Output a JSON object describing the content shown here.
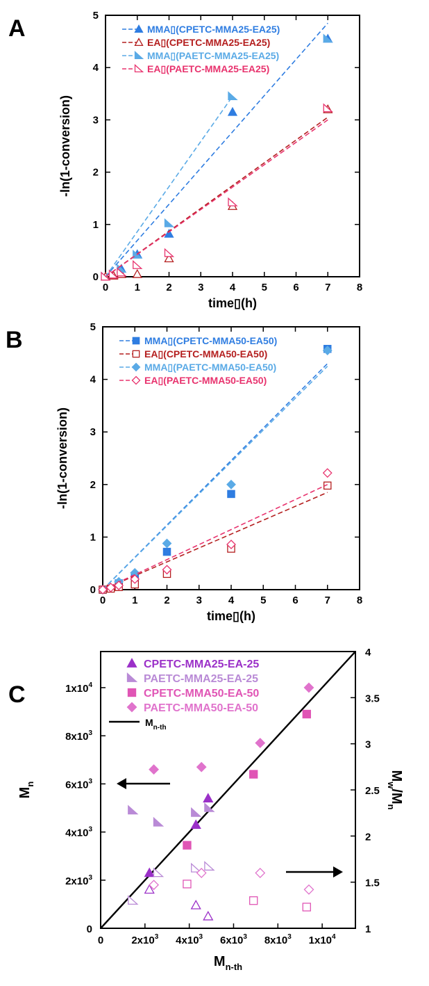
{
  "chart_data": [
    {
      "panel_letter": "A",
      "type": "scatter",
      "xlabel": "time▯(h)",
      "ylabel": "-ln(1-conversion)",
      "xlim": [
        0,
        8
      ],
      "ylim": [
        0,
        5
      ],
      "xticks": [
        "0",
        "1",
        "2",
        "3",
        "4",
        "5",
        "6",
        "7",
        "8"
      ],
      "yticks": [
        "0",
        "1",
        "2",
        "3",
        "4",
        "5"
      ],
      "legend_position": "top-left",
      "series": [
        {
          "name": "MMA▯(CPETC-MMA25-EA25)",
          "color": "#2f7de1",
          "marker": "triangle",
          "filled": true,
          "x": [
            0,
            0.5,
            1,
            2,
            4,
            7
          ],
          "y": [
            0,
            0.15,
            0.43,
            0.82,
            3.15,
            4.55
          ],
          "fit": [
            [
              0,
              0
            ],
            [
              7,
              4.85
            ]
          ]
        },
        {
          "name": "EA▯(CPETC-MMA25-EA25)",
          "color": "#b41e1e",
          "marker": "triangle",
          "filled": false,
          "x": [
            0,
            0.25,
            0.5,
            1,
            2,
            4,
            7
          ],
          "y": [
            0,
            0.02,
            0.05,
            0.05,
            0.35,
            1.35,
            3.2
          ],
          "fit": [
            [
              0,
              0
            ],
            [
              7,
              3.05
            ]
          ]
        },
        {
          "name": "MMA▯(PAETC-MMA25-EA25)",
          "color": "#5aaae6",
          "marker": "halftriangle",
          "filled": true,
          "x": [
            0,
            0.5,
            1,
            2,
            4,
            7
          ],
          "y": [
            0,
            0.15,
            0.42,
            1.02,
            3.45,
            4.55
          ],
          "fit": [
            [
              0,
              0
            ],
            [
              4,
              3.45
            ]
          ]
        },
        {
          "name": "EA▯(PAETC-MMA25-EA25)",
          "color": "#e8336e",
          "marker": "halftriangle",
          "filled": false,
          "x": [
            0,
            0.25,
            0.5,
            1,
            2,
            4,
            7
          ],
          "y": [
            0,
            0.04,
            0.08,
            0.22,
            0.45,
            1.42,
            3.22
          ],
          "fit": [
            [
              0,
              0
            ],
            [
              7,
              3.0
            ]
          ]
        }
      ]
    },
    {
      "panel_letter": "B",
      "type": "scatter",
      "xlabel": "time▯(h)",
      "ylabel": "-ln(1-conversion)",
      "xlim": [
        0,
        8
      ],
      "ylim": [
        0,
        5
      ],
      "xticks": [
        "0",
        "1",
        "2",
        "3",
        "4",
        "5",
        "6",
        "7",
        "8"
      ],
      "yticks": [
        "0",
        "1",
        "2",
        "3",
        "4",
        "5"
      ],
      "legend_position": "top-left",
      "series": [
        {
          "name": "MMA▯(CPETC-MMA50-EA50)",
          "color": "#2f7de1",
          "marker": "square",
          "filled": true,
          "x": [
            0,
            0.5,
            1,
            2,
            4,
            7
          ],
          "y": [
            0,
            0.12,
            0.25,
            0.72,
            1.82,
            4.58
          ],
          "fit": [
            [
              0,
              0
            ],
            [
              7,
              4.3
            ]
          ]
        },
        {
          "name": "EA▯(CPETC-MMA50-EA50)",
          "color": "#b41e1e",
          "marker": "square",
          "filled": false,
          "x": [
            0,
            0.25,
            0.5,
            1,
            2,
            4,
            7
          ],
          "y": [
            0,
            0.02,
            0.05,
            0.1,
            0.3,
            0.78,
            1.98
          ],
          "fit": [
            [
              0,
              0
            ],
            [
              7,
              1.85
            ]
          ]
        },
        {
          "name": "MMA▯(PAETC-MMA50-EA50)",
          "color": "#5aaae6",
          "marker": "diamond",
          "filled": true,
          "x": [
            0,
            0.5,
            1,
            2,
            4,
            7
          ],
          "y": [
            0,
            0.15,
            0.32,
            0.88,
            2.0,
            4.55
          ],
          "fit": [
            [
              0,
              0
            ],
            [
              7,
              4.25
            ]
          ]
        },
        {
          "name": "EA▯(PAETC-MMA50-EA50)",
          "color": "#e8336e",
          "marker": "diamond",
          "filled": false,
          "x": [
            0,
            0.25,
            0.5,
            1,
            2,
            4,
            7
          ],
          "y": [
            0,
            0.04,
            0.08,
            0.2,
            0.38,
            0.86,
            2.22
          ],
          "fit": [
            [
              0,
              0
            ],
            [
              7,
              2.0
            ]
          ]
        }
      ]
    },
    {
      "panel_letter": "C",
      "type": "scatter",
      "xlabel": "M",
      "xlabel_sub": "n-th",
      "ylabel": "M",
      "ylabel_sub": "n",
      "y2label": "M",
      "y2label_sub": "w",
      "y2label_mid": "/M",
      "y2label_sub2": "n",
      "xlim": [
        0,
        11500
      ],
      "ylim": [
        0,
        11500
      ],
      "y2lim": [
        1,
        4
      ],
      "xticks": [
        {
          "v": 0,
          "t": "0"
        },
        {
          "v": 2000,
          "t": "2x10",
          "e": "3"
        },
        {
          "v": 4000,
          "t": "4x10",
          "e": "3"
        },
        {
          "v": 6000,
          "t": "6x10",
          "e": "3"
        },
        {
          "v": 8000,
          "t": "8x10",
          "e": "3"
        },
        {
          "v": 10000,
          "t": "1x10",
          "e": "4"
        }
      ],
      "yticks": [
        {
          "v": 0,
          "t": "0"
        },
        {
          "v": 2000,
          "t": "2x10",
          "e": "3"
        },
        {
          "v": 4000,
          "t": "4x10",
          "e": "3"
        },
        {
          "v": 6000,
          "t": "6x10",
          "e": "3"
        },
        {
          "v": 8000,
          "t": "8x10",
          "e": "3"
        },
        {
          "v": 10000,
          "t": "1x10",
          "e": "4"
        }
      ],
      "y2ticks": [
        "1",
        "1.5",
        "2",
        "2.5",
        "3",
        "3.5",
        "4"
      ],
      "legend_position": "top-left",
      "series": [
        {
          "name": "CPETC-MMA25-EA-25",
          "color": "#9b30c8",
          "marker": "triangle",
          "x": [
            2200,
            4300,
            4850
          ],
          "y": [
            2300,
            4300,
            5400
          ],
          "y2": [
            1.42,
            1.25,
            1.13
          ]
        },
        {
          "name": "PAETC-MMA25-EA-25",
          "color": "#b98ad6",
          "marker": "halftriangle",
          "x": [
            1450,
            2600,
            4300,
            4900
          ],
          "y": [
            4900,
            4400,
            4800,
            5000
          ],
          "y2": [
            1.3,
            1.6,
            1.65,
            1.67
          ]
        },
        {
          "name": "CPETC-MMA50-EA-50",
          "color": "#e055b5",
          "marker": "square",
          "x": [
            3900,
            6900,
            9300
          ],
          "y": [
            3450,
            6400,
            8900
          ],
          "y2": [
            1.48,
            1.3,
            1.23
          ]
        },
        {
          "name": "PAETC-MMA50-EA-50",
          "color": "#e073cc",
          "marker": "diamond",
          "x": [
            2400,
            4550,
            7200,
            9400
          ],
          "y": [
            6600,
            6700,
            7700,
            10000
          ],
          "y2": [
            1.47,
            1.6,
            1.6,
            1.42
          ]
        }
      ],
      "fit_line_label": "M",
      "fit_line_label_sub": "n-th"
    }
  ]
}
